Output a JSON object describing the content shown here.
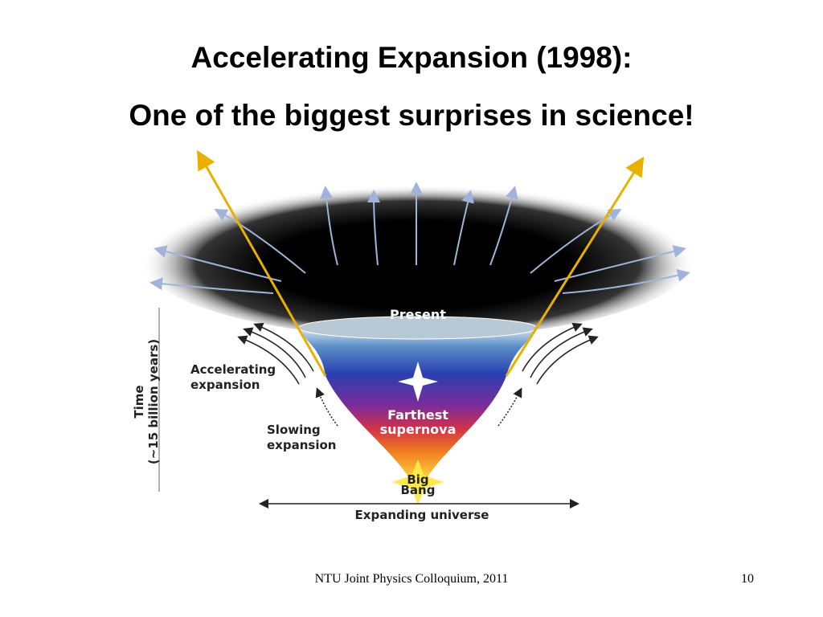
{
  "slide": {
    "title": [
      "Accelerating Expansion (1998):",
      "One of the biggest surprises in science!"
    ],
    "diagram": {
      "present": "Present",
      "farthest": [
        "Farthest",
        "supernova"
      ],
      "accelerating": [
        "Accelerating",
        "expansion"
      ],
      "slowing": [
        "Slowing",
        "expansion"
      ],
      "big_bang": [
        "Big",
        "Bang"
      ],
      "expanding": "Expanding universe",
      "time": [
        "Time",
        "(~15 billion years)"
      ]
    },
    "footer": {
      "text": "NTU Joint Physics Colloquium, 2011",
      "page": "10"
    }
  }
}
